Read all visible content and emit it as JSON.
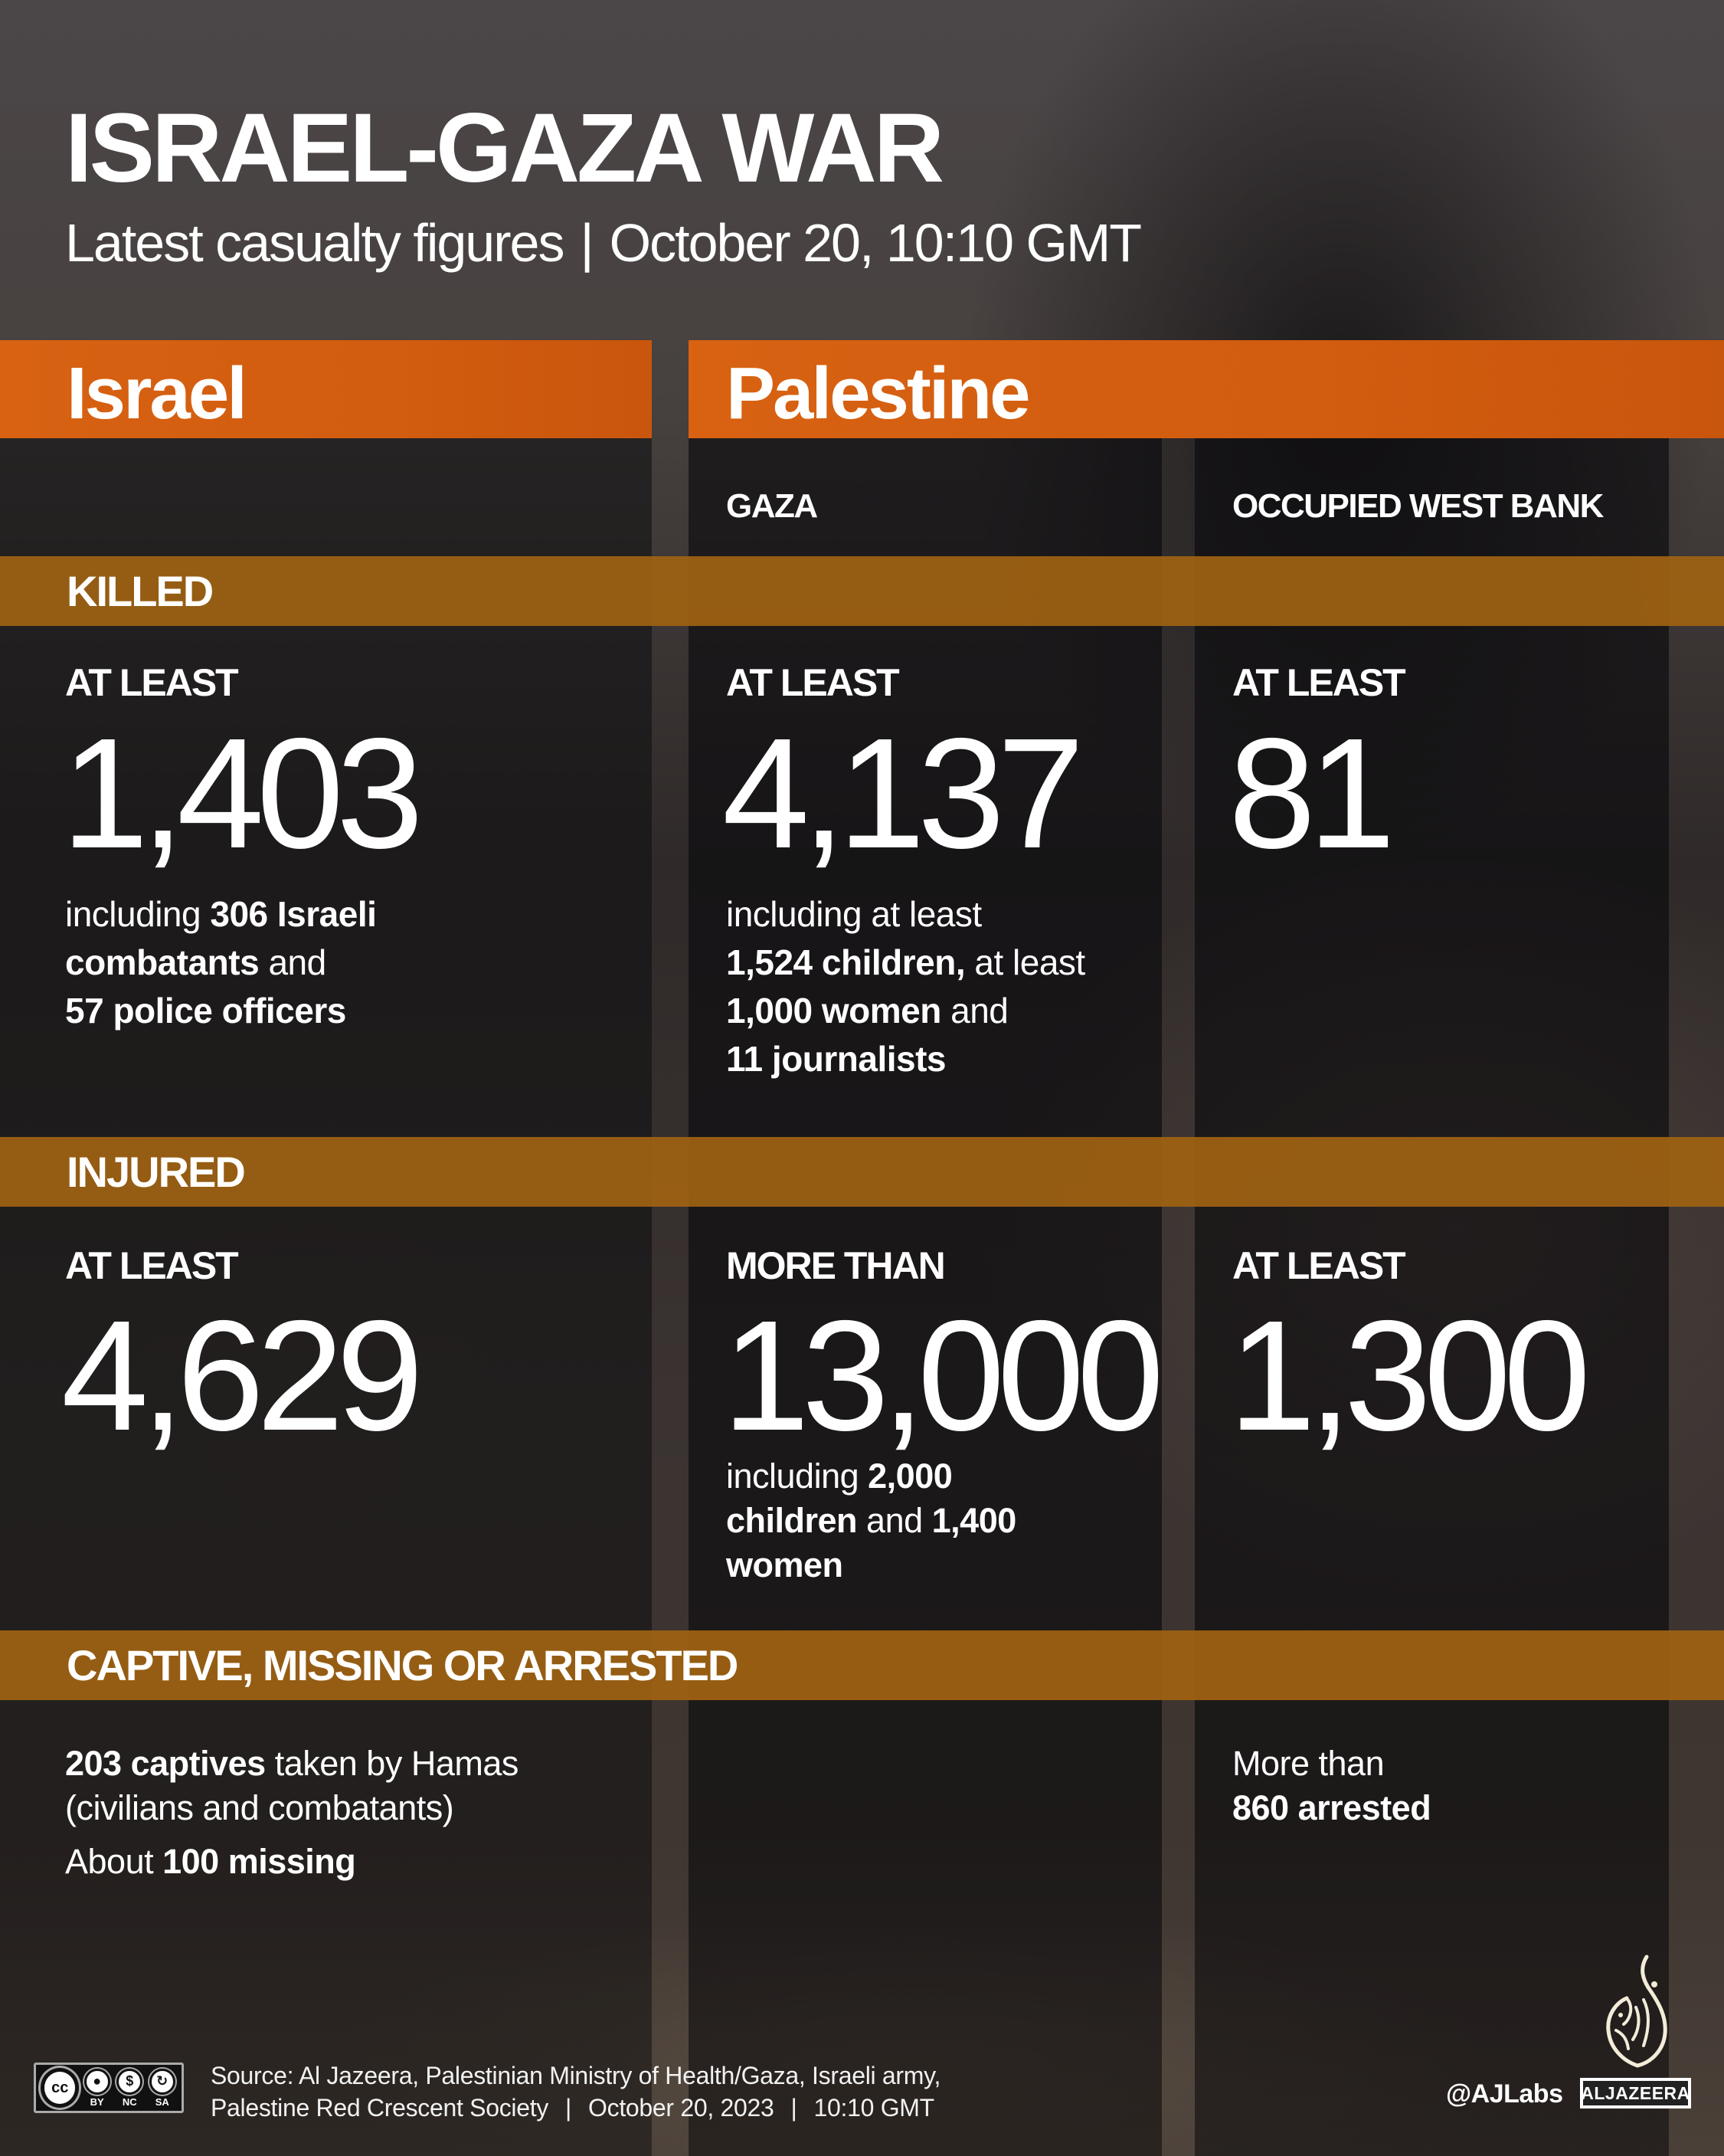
{
  "header": {
    "title": "ISRAEL-GAZA WAR",
    "subtitle_left": "Latest casualty figures",
    "subtitle_sep": "|",
    "subtitle_right": "October 20, 10:10 GMT"
  },
  "columns": {
    "israel": {
      "label": "Israel"
    },
    "palestine": {
      "label": "Palestine",
      "regions": {
        "gaza": "GAZA",
        "west_bank": "OCCUPIED WEST BANK"
      }
    }
  },
  "sections": {
    "killed": {
      "label": "KILLED",
      "israel": {
        "qualifier": "AT LEAST",
        "value": "1,403",
        "detail": [
          [
            {
              "t": "including ",
              "b": false
            },
            {
              "t": "306 Israeli",
              "b": true
            }
          ],
          [
            {
              "t": "combatants",
              "b": true
            },
            {
              "t": " and",
              "b": false
            }
          ],
          [
            {
              "t": "57 police officers",
              "b": true
            }
          ]
        ]
      },
      "gaza": {
        "qualifier": "AT LEAST",
        "value": "4,137",
        "detail": [
          [
            {
              "t": "including at least",
              "b": false
            }
          ],
          [
            {
              "t": "1,524 children,",
              "b": true
            },
            {
              "t": " at least",
              "b": false
            }
          ],
          [
            {
              "t": "1,000 women",
              "b": true
            },
            {
              "t": " and",
              "b": false
            }
          ],
          [
            {
              "t": "11 journalists",
              "b": true
            }
          ]
        ]
      },
      "west_bank": {
        "qualifier": "AT LEAST",
        "value": "81"
      }
    },
    "injured": {
      "label": "INJURED",
      "israel": {
        "qualifier": "AT LEAST",
        "value": "4,629"
      },
      "gaza": {
        "qualifier": "MORE THAN",
        "value": "13,000",
        "detail": [
          [
            {
              "t": "including ",
              "b": false
            },
            {
              "t": "2,000",
              "b": true
            }
          ],
          [
            {
              "t": "children",
              "b": true
            },
            {
              "t": " and ",
              "b": false
            },
            {
              "t": "1,400",
              "b": true
            }
          ],
          [
            {
              "t": "women",
              "b": true
            }
          ]
        ]
      },
      "west_bank": {
        "qualifier": "AT LEAST",
        "value": "1,300"
      }
    },
    "captive": {
      "label": "CAPTIVE, MISSING OR ARRESTED",
      "israel": {
        "detail": [
          [
            {
              "t": "203 captives",
              "b": true
            },
            {
              "t": " taken by Hamas",
              "b": false
            }
          ],
          [
            {
              "t": "(civilians and combatants)",
              "b": false
            }
          ]
        ],
        "detail2": [
          [
            {
              "t": "About ",
              "b": false
            },
            {
              "t": "100 missing",
              "b": true
            }
          ]
        ]
      },
      "west_bank": {
        "detail": [
          [
            {
              "t": "More than",
              "b": false
            }
          ],
          [
            {
              "t": "860 arrested",
              "b": true
            }
          ]
        ]
      }
    }
  },
  "footer": {
    "license": {
      "badge": "cc",
      "items": [
        "BY",
        "NC",
        "SA"
      ]
    },
    "source_line1": "Source: Al Jazeera, Palestinian Ministry of Health/Gaza, Israeli army,",
    "source_line2_org": "Palestine Red Crescent Society",
    "source_sep": "|",
    "source_date": "October 20, 2023",
    "source_time": "10:10 GMT",
    "handle": "@AJLabs",
    "brand": "ALJAZEERA"
  },
  "colors": {
    "header_orange": "#d65f14",
    "band_amber": "#9e6212",
    "background": "#4a4546",
    "text": "#ffffff"
  }
}
